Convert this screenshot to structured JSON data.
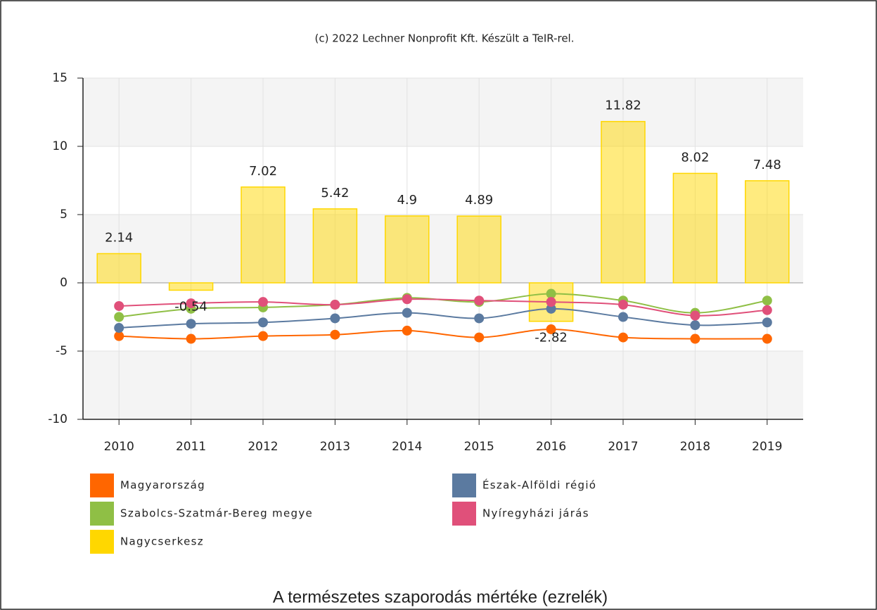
{
  "chart_data": {
    "type": "bar",
    "credit": "(c) 2022 Lechner Nonprofit Kft. Készült a TeIR-rel.",
    "title": "A természetes szaporodás mértéke (ezrelék)",
    "categories": [
      "2010",
      "2011",
      "2012",
      "2013",
      "2014",
      "2015",
      "2016",
      "2017",
      "2018",
      "2019"
    ],
    "ylim": [
      -10,
      15
    ],
    "yticks": [
      -10,
      -5,
      0,
      5,
      10,
      15
    ],
    "grid": true,
    "series": [
      {
        "name": "Magyarország",
        "type": "line",
        "color": "#ff6600",
        "values": [
          -3.9,
          -4.1,
          -3.9,
          -3.8,
          -3.5,
          -4.0,
          -3.4,
          -4.0,
          -4.1,
          -4.1
        ]
      },
      {
        "name": "Észak-Alföldi régió",
        "type": "line",
        "color": "#5b7aa0",
        "values": [
          -3.3,
          -3.0,
          -2.9,
          -2.6,
          -2.2,
          -2.6,
          -1.9,
          -2.5,
          -3.1,
          -2.9
        ]
      },
      {
        "name": "Szabolcs-Szatmár-Bereg megye",
        "type": "line",
        "color": "#8fbf45",
        "values": [
          -2.5,
          -1.9,
          -1.8,
          -1.6,
          -1.1,
          -1.4,
          -0.8,
          -1.3,
          -2.2,
          -1.3
        ]
      },
      {
        "name": "Nyíregyházi járás",
        "type": "line",
        "color": "#e0507a",
        "values": [
          -1.7,
          -1.5,
          -1.4,
          -1.6,
          -1.2,
          -1.3,
          -1.4,
          -1.6,
          -2.4,
          -2.0
        ]
      },
      {
        "name": "Nagycserkesz",
        "type": "bar",
        "color": "#ffd700",
        "values": [
          2.14,
          -0.54,
          7.02,
          5.42,
          4.9,
          4.89,
          -2.82,
          11.82,
          8.02,
          7.48
        ]
      }
    ]
  }
}
